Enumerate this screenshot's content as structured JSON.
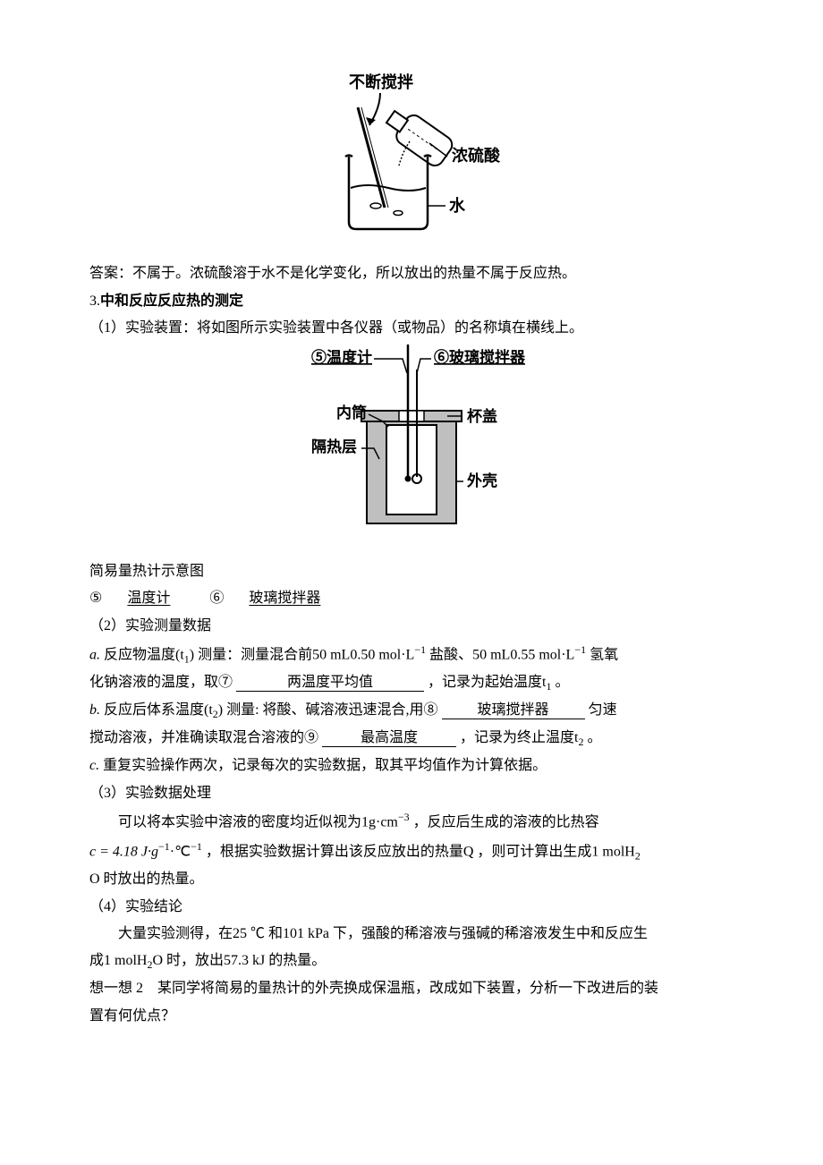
{
  "fig1": {
    "label_stir": "不断搅拌",
    "label_acid": "浓硫酸",
    "label_water": "水",
    "stroke": "#000000",
    "fill_bg": "#ffffff"
  },
  "answer_line": "答案：不属于。浓硫酸溶于水不是化学变化，所以放出的热量不属于反应热。",
  "section3_title": "3.中和反应反应热的测定",
  "step1_intro": "（1）实验装置：将如图所示实验装置中各仪器（或物品）的名称填在横线上。",
  "fig2": {
    "label_5": "⑤温度计",
    "label_6": "⑥玻璃搅拌器",
    "label_inner": "内筒",
    "label_lid": "杯盖",
    "label_insulation": "隔热层",
    "label_shell": "外壳",
    "stroke": "#000000",
    "fill_grey": "#bfbfbf",
    "fill_white": "#ffffff"
  },
  "caption2": "简易量热计示意图",
  "line5_prefix": "⑤",
  "line5_answer": "温度计",
  "line6_prefix": "⑥",
  "line6_answer": "玻璃搅拌器",
  "step2_title": "（2）实验测量数据",
  "step2a": {
    "prefix": "a.",
    "text_before": "反应物温度(t",
    "sub1": "1",
    "text_mid": ") 测量：测量混合前50 mL0.50 mol·L",
    "sup1": "−1",
    "text_mid2": " 盐酸、50 mL0.55 mol·L",
    "sup2": "−1",
    "text_mid3": " 氢氧",
    "line2_before": "化钠溶液的温度，取⑦",
    "answer": "两温度平均值",
    "line2_after": "，记录为起始温度t",
    "sub2": "1",
    "line2_end": " 。"
  },
  "step2b": {
    "prefix": "b.",
    "text_before": "反应后体系温度(t",
    "sub1": "2",
    "text_mid": ") 测量: 将酸、碱溶液迅速混合,用⑧",
    "answer1": "玻璃搅拌器",
    "text_after1": "匀速",
    "line2_before": "搅动溶液，并准确读取混合溶液的⑨",
    "answer2": "最高温度",
    "line2_after": "，记录为终止温度t",
    "sub2": "2",
    "line2_end": " 。"
  },
  "step2c": {
    "prefix": "c.",
    "text": "重复实验操作两次，记录每次的实验数据，取其平均值作为计算依据。"
  },
  "step3_title": "（3）实验数据处理",
  "step3_body": {
    "line1_before": "可以将本实验中溶液的密度均近似视为1g·cm",
    "sup1": "−3",
    "line1_after": " ，反应后生成的溶液的比热容",
    "line2_before": "c = 4.18 J·g",
    "sup2": "−1",
    "line2_mid": "·℃",
    "sup3": "−1",
    "line2_after": " ，根据实验数据计算出该反应放出的热量Q ，则可计算出生成1 molH",
    "sub1": "2",
    "line3": "O 时放出的热量。"
  },
  "step4_title": "（4）实验结论",
  "step4_body": {
    "line1": "大量实验测得，在25 ℃ 和101 kPa 下，强酸的稀溶液与强碱的稀溶液发生中和反应生",
    "line2_before": "成1 molH",
    "sub1": "2",
    "line2_after": "O 时，放出57.3 kJ 的热量。"
  },
  "think2": {
    "line1": "想一想 2　某同学将简易的量热计的外壳换成保温瓶，改成如下装置，分析一下改进后的装",
    "line2": "置有何优点？"
  }
}
